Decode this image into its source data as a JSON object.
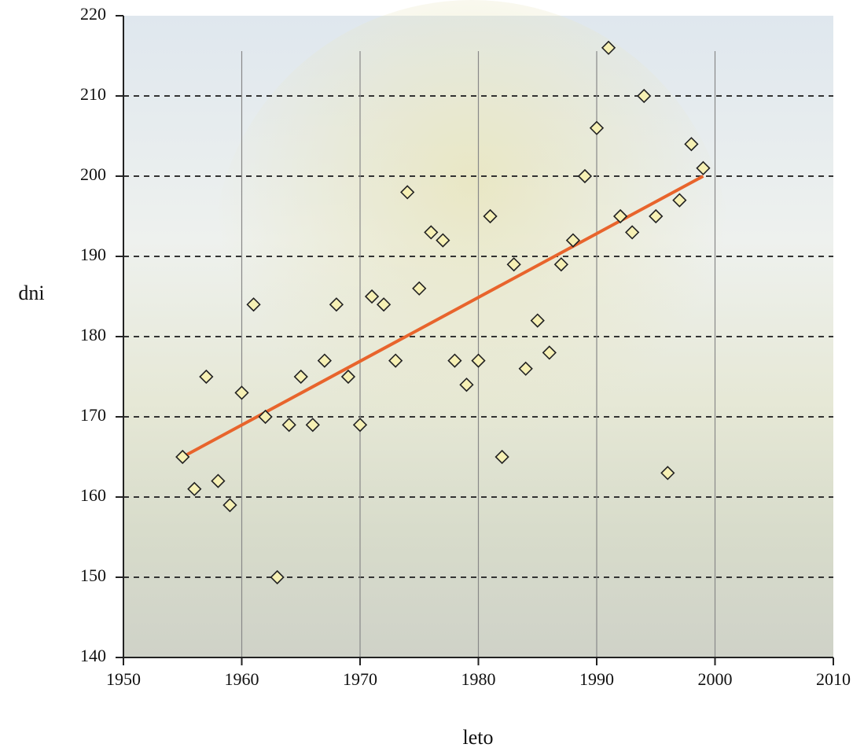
{
  "chart_data": {
    "type": "scatter",
    "x_label": "leto",
    "y_label": "dni",
    "x": [
      1955,
      1956,
      1957,
      1958,
      1959,
      1960,
      1961,
      1962,
      1963,
      1964,
      1965,
      1966,
      1967,
      1968,
      1969,
      1970,
      1971,
      1972,
      1973,
      1974,
      1975,
      1976,
      1977,
      1978,
      1979,
      1980,
      1981,
      1982,
      1983,
      1984,
      1985,
      1986,
      1987,
      1988,
      1989,
      1990,
      1991,
      1992,
      1993,
      1994,
      1995,
      1996,
      1997,
      1998,
      1999
    ],
    "values": [
      165,
      161,
      175,
      162,
      159,
      173,
      184,
      170,
      150,
      169,
      175,
      169,
      177,
      184,
      175,
      169,
      185,
      184,
      177,
      198,
      186,
      193,
      192,
      177,
      174,
      177,
      195,
      165,
      189,
      176,
      182,
      178,
      189,
      192,
      200,
      206,
      216,
      195,
      193,
      210,
      195,
      163,
      197,
      204,
      201
    ],
    "color": "#f6f0b4",
    "trendline": {
      "x": [
        1955,
        1999
      ],
      "values": [
        165,
        200
      ],
      "color": "#e8642c"
    },
    "xlim": [
      1950,
      2010
    ],
    "xticks": [
      1950,
      1960,
      1970,
      1980,
      1990,
      2000,
      2010
    ],
    "ylim": [
      140,
      220
    ],
    "yticks": [
      140,
      150,
      160,
      170,
      180,
      190,
      200,
      210,
      220
    ],
    "grid": true
  }
}
